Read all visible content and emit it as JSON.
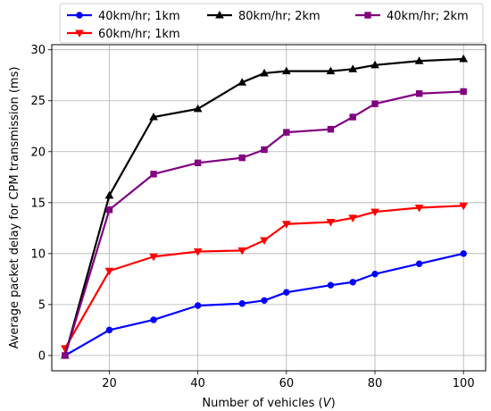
{
  "chart_data": {
    "type": "line",
    "title": "",
    "xlabel": "Number of vehicles (",
    "xlabel_var": "V",
    "xlabel_close": ")",
    "ylabel": "Average packet delay for CPM transmission (ms)",
    "xlim": [
      7,
      105
    ],
    "ylim": [
      -1.5,
      30.5
    ],
    "xticks": [
      20,
      40,
      60,
      80,
      100
    ],
    "yticks": [
      0,
      5,
      10,
      15,
      20,
      25,
      30
    ],
    "grid": true,
    "legend_position": "top",
    "x": [
      10,
      20,
      30,
      40,
      50,
      55,
      60,
      70,
      75,
      80,
      90,
      100
    ],
    "series": [
      {
        "name": "40km/hr; 1km",
        "color": "#0000ff",
        "marker": "circle",
        "values": [
          0,
          2.5,
          3.5,
          4.9,
          5.1,
          5.4,
          6.2,
          6.9,
          7.2,
          8.0,
          9.0,
          10.0
        ]
      },
      {
        "name": "60km/hr; 1km",
        "color": "#ff0000",
        "marker": "triangle-down",
        "values": [
          0.7,
          8.3,
          9.7,
          10.2,
          10.3,
          11.3,
          12.9,
          13.1,
          13.5,
          14.1,
          14.5,
          14.7
        ]
      },
      {
        "name": "80km/hr; 2km",
        "color": "#000000",
        "marker": "triangle-up",
        "values": [
          0,
          15.7,
          23.4,
          24.2,
          26.8,
          27.7,
          27.9,
          27.9,
          28.1,
          28.5,
          28.9,
          29.1
        ]
      },
      {
        "name": "40km/hr; 2km",
        "color": "#800080",
        "marker": "square",
        "values": [
          0,
          14.3,
          17.8,
          18.9,
          19.4,
          20.2,
          21.9,
          22.2,
          23.4,
          24.7,
          25.7,
          25.9
        ]
      }
    ]
  }
}
